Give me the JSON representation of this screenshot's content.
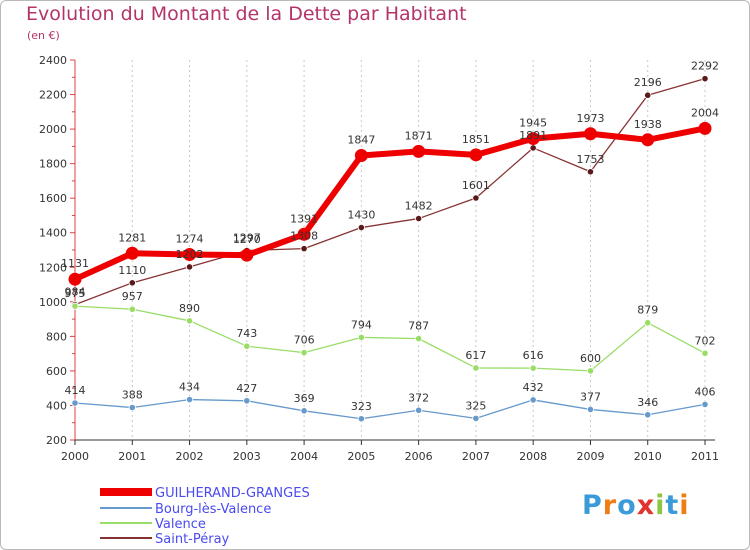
{
  "title": "Evolution du Montant de la Dette par Habitant",
  "unit": "(en €)",
  "logo": {
    "text": "Proxiti",
    "colors": [
      "#3a9bd8",
      "#f07c16",
      "#3a9bd8",
      "#e0342c",
      "#8dc63f",
      "#3a9bd8",
      "#f07c16"
    ]
  },
  "chart_data": {
    "type": "line",
    "x": [
      "2000",
      "2001",
      "2002",
      "2003",
      "2004",
      "2005",
      "2006",
      "2007",
      "2008",
      "2009",
      "2010",
      "2011"
    ],
    "ylim": [
      200,
      2400
    ],
    "yticks": [
      200,
      400,
      600,
      800,
      1000,
      1200,
      1400,
      1600,
      1800,
      2000,
      2200,
      2400
    ],
    "grid": "vertical",
    "legend_position": "bottom-left",
    "series": [
      {
        "name": "GUILHERAND-GRANGES",
        "color": "#ee0000",
        "width": 6,
        "values": [
          1131,
          1281,
          1274,
          1270,
          1391,
          1847,
          1871,
          1851,
          1945,
          1973,
          1938,
          2004
        ]
      },
      {
        "name": "Bourg-lès-Valence",
        "color": "#6699cc",
        "width": 1.3,
        "values": [
          414,
          388,
          434,
          427,
          369,
          323,
          372,
          325,
          432,
          377,
          346,
          406
        ]
      },
      {
        "name": "Valence",
        "color": "#99dd66",
        "width": 1.3,
        "values": [
          975,
          957,
          890,
          743,
          706,
          794,
          787,
          617,
          616,
          600,
          879,
          702
        ]
      },
      {
        "name": "Saint-Péray",
        "color": "#883333",
        "width": 1.3,
        "values": [
          984,
          1110,
          1202,
          1297,
          1308,
          1430,
          1482,
          1601,
          1891,
          1753,
          2196,
          2292
        ]
      }
    ]
  }
}
